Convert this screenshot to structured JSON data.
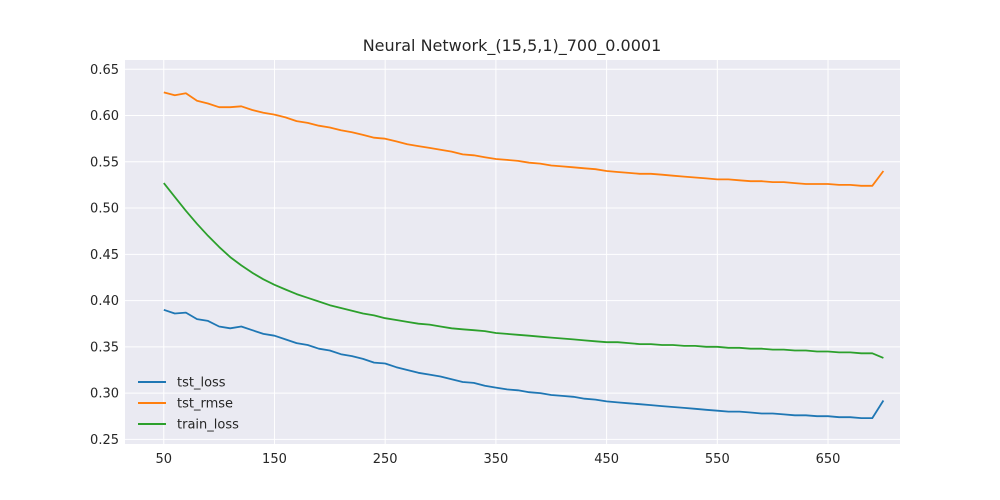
{
  "chart_data": {
    "type": "line",
    "title": "Neural Network_(15,5,1)_700_0.0001",
    "xlabel": "",
    "ylabel": "",
    "xlim": [
      15,
      715
    ],
    "ylim": [
      0.245,
      0.66
    ],
    "x_ticks": [
      50,
      150,
      250,
      350,
      450,
      550,
      650
    ],
    "y_ticks": [
      0.25,
      0.3,
      0.35,
      0.4,
      0.45,
      0.5,
      0.55,
      0.6,
      0.65
    ],
    "y_tick_labels": [
      "0.25",
      "0.30",
      "0.35",
      "0.40",
      "0.45",
      "0.50",
      "0.55",
      "0.60",
      "0.65"
    ],
    "grid": true,
    "legend_position": "lower-left",
    "background": "#eaeaf2",
    "series": [
      {
        "name": "tst_loss",
        "color": "#1f77b4",
        "x": [
          50,
          60,
          70,
          80,
          90,
          100,
          110,
          120,
          130,
          140,
          150,
          160,
          170,
          180,
          190,
          200,
          210,
          220,
          230,
          240,
          250,
          260,
          270,
          280,
          290,
          300,
          310,
          320,
          330,
          340,
          350,
          360,
          370,
          380,
          390,
          400,
          410,
          420,
          430,
          440,
          450,
          460,
          470,
          480,
          490,
          500,
          510,
          520,
          530,
          540,
          550,
          560,
          570,
          580,
          590,
          600,
          610,
          620,
          630,
          640,
          650,
          660,
          670,
          680,
          690,
          700
        ],
        "values": [
          0.39,
          0.386,
          0.387,
          0.38,
          0.378,
          0.372,
          0.37,
          0.372,
          0.368,
          0.364,
          0.362,
          0.358,
          0.354,
          0.352,
          0.348,
          0.346,
          0.342,
          0.34,
          0.337,
          0.333,
          0.332,
          0.328,
          0.325,
          0.322,
          0.32,
          0.318,
          0.315,
          0.312,
          0.311,
          0.308,
          0.306,
          0.304,
          0.303,
          0.301,
          0.3,
          0.298,
          0.297,
          0.296,
          0.294,
          0.293,
          0.291,
          0.29,
          0.289,
          0.288,
          0.287,
          0.286,
          0.285,
          0.284,
          0.283,
          0.282,
          0.281,
          0.28,
          0.28,
          0.279,
          0.278,
          0.278,
          0.277,
          0.276,
          0.276,
          0.275,
          0.275,
          0.274,
          0.274,
          0.273,
          0.273,
          0.292
        ]
      },
      {
        "name": "tst_rmse",
        "color": "#ff7f0e",
        "x": [
          50,
          60,
          70,
          80,
          90,
          100,
          110,
          120,
          130,
          140,
          150,
          160,
          170,
          180,
          190,
          200,
          210,
          220,
          230,
          240,
          250,
          260,
          270,
          280,
          290,
          300,
          310,
          320,
          330,
          340,
          350,
          360,
          370,
          380,
          390,
          400,
          410,
          420,
          430,
          440,
          450,
          460,
          470,
          480,
          490,
          500,
          510,
          520,
          530,
          540,
          550,
          560,
          570,
          580,
          590,
          600,
          610,
          620,
          630,
          640,
          650,
          660,
          670,
          680,
          690,
          700
        ],
        "values": [
          0.625,
          0.622,
          0.624,
          0.616,
          0.613,
          0.609,
          0.609,
          0.61,
          0.606,
          0.603,
          0.601,
          0.598,
          0.594,
          0.592,
          0.589,
          0.587,
          0.584,
          0.582,
          0.579,
          0.576,
          0.575,
          0.572,
          0.569,
          0.567,
          0.565,
          0.563,
          0.561,
          0.558,
          0.557,
          0.555,
          0.553,
          0.552,
          0.551,
          0.549,
          0.548,
          0.546,
          0.545,
          0.544,
          0.543,
          0.542,
          0.54,
          0.539,
          0.538,
          0.537,
          0.537,
          0.536,
          0.535,
          0.534,
          0.533,
          0.532,
          0.531,
          0.531,
          0.53,
          0.529,
          0.529,
          0.528,
          0.528,
          0.527,
          0.526,
          0.526,
          0.526,
          0.525,
          0.525,
          0.524,
          0.524,
          0.54
        ]
      },
      {
        "name": "train_loss",
        "color": "#2ca02c",
        "x": [
          50,
          60,
          70,
          80,
          90,
          100,
          110,
          120,
          130,
          140,
          150,
          160,
          170,
          180,
          190,
          200,
          210,
          220,
          230,
          240,
          250,
          260,
          270,
          280,
          290,
          300,
          310,
          320,
          330,
          340,
          350,
          360,
          370,
          380,
          390,
          400,
          410,
          420,
          430,
          440,
          450,
          460,
          470,
          480,
          490,
          500,
          510,
          520,
          530,
          540,
          550,
          560,
          570,
          580,
          590,
          600,
          610,
          620,
          630,
          640,
          650,
          660,
          670,
          680,
          690,
          700
        ],
        "values": [
          0.527,
          0.512,
          0.497,
          0.483,
          0.47,
          0.458,
          0.447,
          0.438,
          0.43,
          0.423,
          0.417,
          0.412,
          0.407,
          0.403,
          0.399,
          0.395,
          0.392,
          0.389,
          0.386,
          0.384,
          0.381,
          0.379,
          0.377,
          0.375,
          0.374,
          0.372,
          0.37,
          0.369,
          0.368,
          0.367,
          0.365,
          0.364,
          0.363,
          0.362,
          0.361,
          0.36,
          0.359,
          0.358,
          0.357,
          0.356,
          0.355,
          0.355,
          0.354,
          0.353,
          0.353,
          0.352,
          0.352,
          0.351,
          0.351,
          0.35,
          0.35,
          0.349,
          0.349,
          0.348,
          0.348,
          0.347,
          0.347,
          0.346,
          0.346,
          0.345,
          0.345,
          0.344,
          0.344,
          0.343,
          0.343,
          0.338
        ]
      }
    ]
  }
}
